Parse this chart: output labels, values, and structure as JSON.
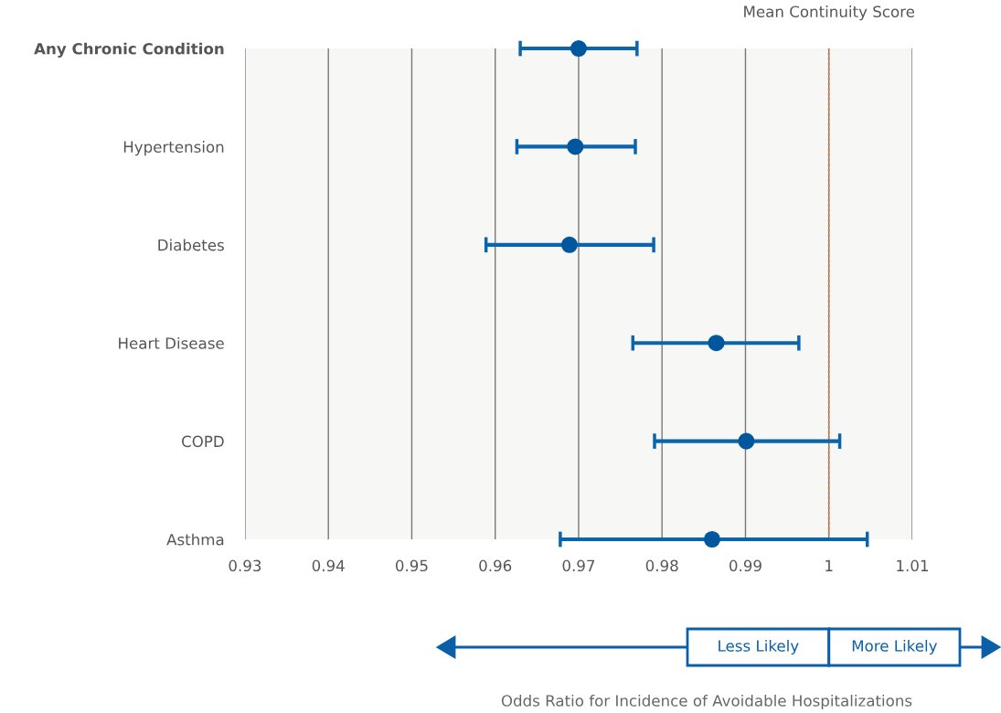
{
  "chart_data": {
    "type": "scatter",
    "orientation": "horizontal",
    "categories": [
      "Any Chronic Condition",
      "Hypertension",
      "Diabetes",
      "Heart Disease",
      "COPD",
      "Asthma"
    ],
    "series": [
      {
        "color": "#0a65ad",
        "values": [
          0.97,
          0.9696,
          0.9689,
          0.9865,
          0.9901,
          0.986
        ],
        "errors": [
          [
            0.963,
            0.977
          ],
          [
            0.9626,
            0.9768
          ],
          [
            0.9589,
            0.979
          ],
          [
            0.9765,
            0.9964
          ],
          [
            0.9791,
            1.0013
          ],
          [
            0.9678,
            1.0046
          ]
        ]
      }
    ],
    "xlim": [
      0.93,
      1.01
    ],
    "xticks": [
      0.93,
      0.94,
      0.95,
      0.96,
      0.97,
      0.98,
      0.99,
      1,
      1.01
    ],
    "ref_lines": [
      {
        "axis": "x",
        "value": 1,
        "label": "Mean Continuity Score",
        "color": "#f07f2e",
        "line_style": "dotted"
      }
    ],
    "annotations": [
      "Less Likely",
      "More Likely",
      "Odds Ratio for Incidence of Avoidable Hospitalizations"
    ],
    "grid": "x",
    "marker": "circle",
    "legend": false
  }
}
